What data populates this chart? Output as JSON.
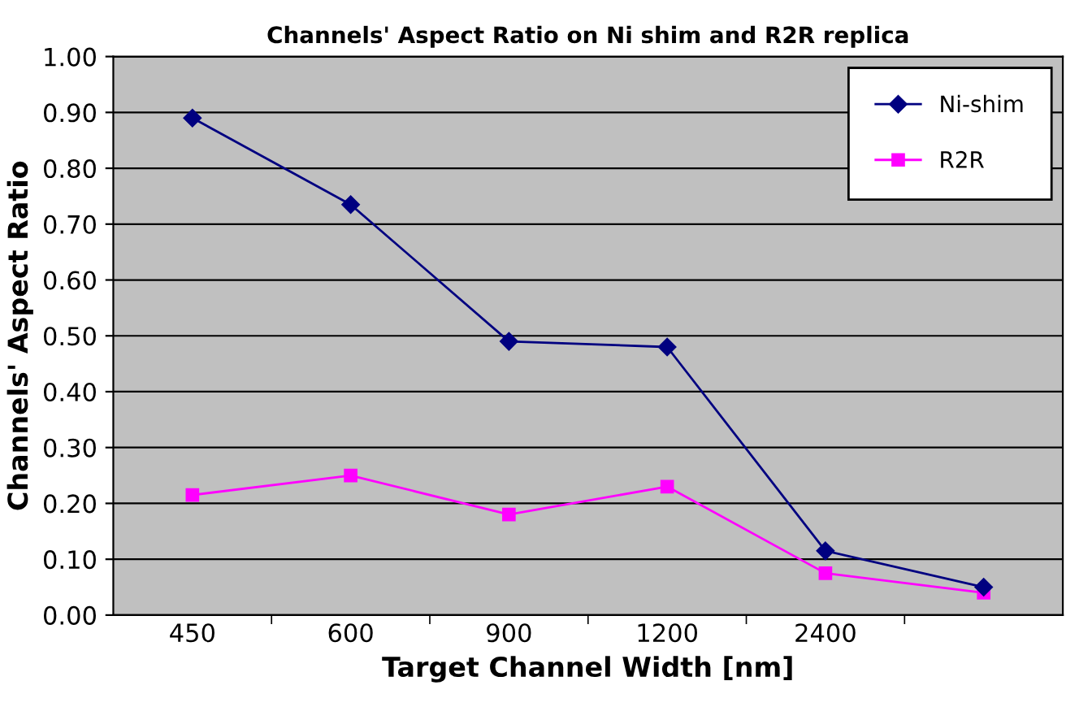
{
  "chart_data": {
    "type": "line",
    "title": "Channels' Aspect Ratio on Ni shim and R2R replica",
    "xlabel": "Target Channel Width [nm]",
    "ylabel": "Channels' Aspect Ratio",
    "categories": [
      "450",
      "600",
      "900",
      "1200",
      "2400",
      null
    ],
    "series": [
      {
        "name": "Ni-shim",
        "color": "#000080",
        "marker": "diamond",
        "values": [
          0.89,
          0.735,
          0.49,
          0.48,
          0.115,
          0.05
        ]
      },
      {
        "name": "R2R",
        "color": "#ff00ff",
        "marker": "square",
        "values": [
          0.215,
          0.25,
          0.18,
          0.23,
          0.075,
          0.04
        ]
      }
    ],
    "ylim": [
      0,
      1
    ],
    "yticks": [
      {
        "value": 0,
        "label": "0.00"
      },
      {
        "value": 0.1,
        "label": "0.10"
      },
      {
        "value": 0.2,
        "label": "0.20"
      },
      {
        "value": 0.3,
        "label": "0.30"
      },
      {
        "value": 0.4,
        "label": "0.40"
      },
      {
        "value": 0.5,
        "label": "0.50"
      },
      {
        "value": 0.6,
        "label": "0.60"
      },
      {
        "value": 0.7,
        "label": "0.70"
      },
      {
        "value": 0.8,
        "label": "0.80"
      },
      {
        "value": 0.9,
        "label": "0.90"
      },
      {
        "value": 1,
        "label": "1.00"
      }
    ],
    "grid": "y",
    "legend": "top right",
    "line_style": "solid"
  }
}
